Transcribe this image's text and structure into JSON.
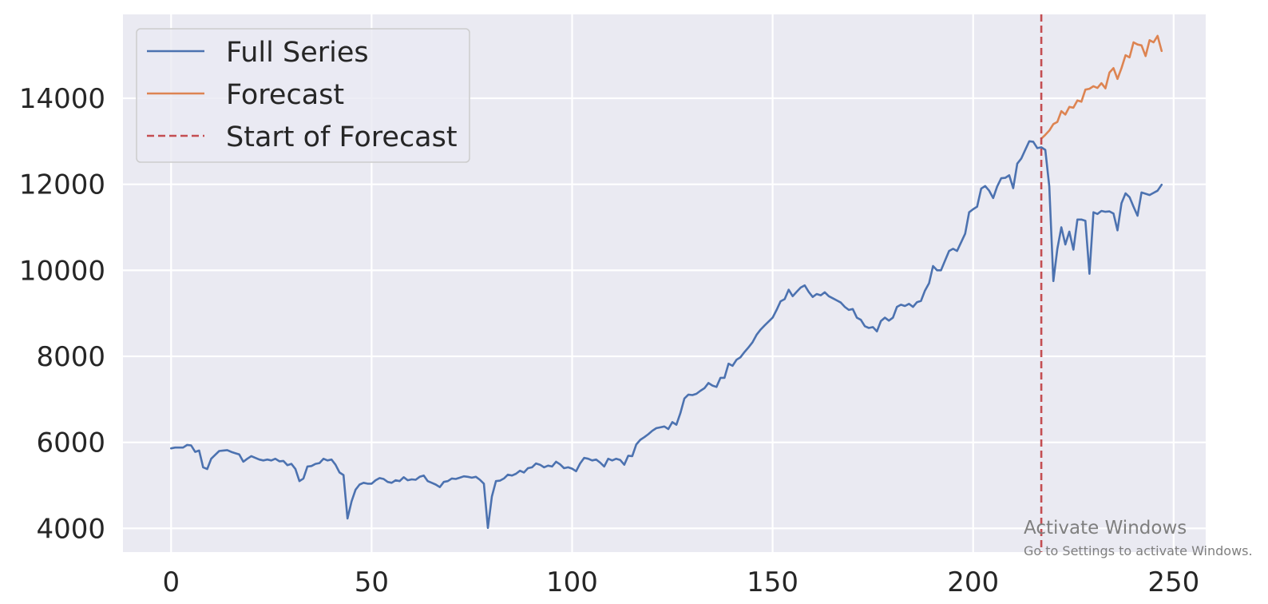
{
  "chart_data": {
    "type": "line",
    "title": "",
    "xlabel": "",
    "ylabel": "",
    "xlim": [
      -12,
      258
    ],
    "ylim": [
      3450,
      15950
    ],
    "grid": true,
    "legend_position": "upper-left",
    "x_ticks": [
      0,
      50,
      100,
      150,
      200,
      250
    ],
    "y_ticks": [
      4000,
      6000,
      8000,
      10000,
      12000,
      14000
    ],
    "x_tick_labels": [
      "0",
      "50",
      "100",
      "150",
      "200",
      "250"
    ],
    "y_tick_labels": [
      "4000",
      "6000",
      "8000",
      "10000",
      "12000",
      "14000"
    ],
    "colors": {
      "background": "#eaeaf2",
      "grid": "#ffffff",
      "full_series": "#4c72b0",
      "forecast": "#dd8452",
      "forecast_start": "#c44e52"
    },
    "forecast_start_x": 217,
    "forecast_start_label": "Start of Forecast",
    "series": [
      {
        "name": "Full Series",
        "color": "#4c72b0",
        "x": [
          0,
          1,
          2,
          3,
          4,
          5,
          6,
          7,
          8,
          9,
          10,
          11,
          12,
          13,
          14,
          15,
          16,
          17,
          18,
          19,
          20,
          21,
          22,
          23,
          24,
          25,
          26,
          27,
          28,
          29,
          30,
          31,
          32,
          33,
          34,
          35,
          36,
          37,
          38,
          39,
          40,
          41,
          42,
          43,
          44,
          45,
          46,
          47,
          48,
          49,
          50,
          51,
          52,
          53,
          54,
          55,
          56,
          57,
          58,
          59,
          60,
          61,
          62,
          63,
          64,
          65,
          66,
          67,
          68,
          69,
          70,
          71,
          72,
          73,
          74,
          75,
          76,
          77,
          78,
          79,
          80,
          81,
          82,
          83,
          84,
          85,
          86,
          87,
          88,
          89,
          90,
          91,
          92,
          93,
          94,
          95,
          96,
          97,
          98,
          99,
          100,
          101,
          102,
          103,
          104,
          105,
          106,
          107,
          108,
          109,
          110,
          111,
          112,
          113,
          114,
          115,
          116,
          117,
          118,
          119,
          120,
          121,
          122,
          123,
          124,
          125,
          126,
          127,
          128,
          129,
          130,
          131,
          132,
          133,
          134,
          135,
          136,
          137,
          138,
          139,
          140,
          141,
          142,
          143,
          144,
          145,
          146,
          147,
          148,
          149,
          150,
          151,
          152,
          153,
          154,
          155,
          156,
          157,
          158,
          159,
          160,
          161,
          162,
          163,
          164,
          165,
          166,
          167,
          168,
          169,
          170,
          171,
          172,
          173,
          174,
          175,
          176,
          177,
          178,
          179,
          180,
          181,
          182,
          183,
          184,
          185,
          186,
          187,
          188,
          189,
          190,
          191,
          192,
          193,
          194,
          195,
          196,
          197,
          198,
          199,
          200,
          201,
          202,
          203,
          204,
          205,
          206,
          207,
          208,
          209,
          210,
          211,
          212,
          213,
          214,
          215,
          216,
          217,
          218,
          219,
          220,
          221,
          222,
          223,
          224,
          225,
          226,
          227,
          228,
          229,
          230,
          231,
          232,
          233,
          234,
          235,
          236,
          237,
          238,
          239,
          240,
          241,
          242,
          243,
          244,
          245,
          246,
          247
        ],
        "y": [
          5860,
          5880,
          5880,
          5880,
          5940,
          5930,
          5780,
          5810,
          5420,
          5380,
          5620,
          5710,
          5800,
          5810,
          5820,
          5780,
          5750,
          5720,
          5550,
          5620,
          5680,
          5640,
          5600,
          5580,
          5600,
          5580,
          5620,
          5560,
          5570,
          5470,
          5500,
          5380,
          5100,
          5160,
          5440,
          5450,
          5500,
          5520,
          5620,
          5580,
          5600,
          5480,
          5300,
          5240,
          4230,
          4630,
          4900,
          5020,
          5060,
          5040,
          5040,
          5120,
          5170,
          5150,
          5080,
          5060,
          5120,
          5100,
          5190,
          5120,
          5140,
          5130,
          5200,
          5230,
          5100,
          5060,
          5020,
          4960,
          5080,
          5100,
          5160,
          5150,
          5180,
          5210,
          5200,
          5180,
          5200,
          5130,
          5040,
          4010,
          4740,
          5100,
          5110,
          5160,
          5250,
          5230,
          5270,
          5340,
          5300,
          5400,
          5420,
          5510,
          5480,
          5420,
          5460,
          5440,
          5550,
          5490,
          5400,
          5420,
          5390,
          5330,
          5510,
          5640,
          5620,
          5580,
          5600,
          5530,
          5440,
          5620,
          5580,
          5620,
          5590,
          5480,
          5690,
          5680,
          5950,
          6060,
          6120,
          6190,
          6270,
          6330,
          6350,
          6370,
          6310,
          6470,
          6410,
          6680,
          7020,
          7110,
          7100,
          7130,
          7200,
          7260,
          7380,
          7320,
          7290,
          7500,
          7500,
          7830,
          7780,
          7920,
          7980,
          8100,
          8210,
          8330,
          8500,
          8620,
          8720,
          8810,
          8900,
          9080,
          9280,
          9330,
          9550,
          9400,
          9500,
          9600,
          9650,
          9500,
          9380,
          9450,
          9420,
          9490,
          9400,
          9350,
          9300,
          9250,
          9150,
          9080,
          9100,
          8900,
          8850,
          8700,
          8660,
          8680,
          8580,
          8820,
          8900,
          8830,
          8900,
          9150,
          9200,
          9170,
          9220,
          9150,
          9260,
          9290,
          9530,
          9700,
          10100,
          10000,
          10000,
          10230,
          10450,
          10500,
          10450,
          10650,
          10850,
          11350,
          11420,
          11480,
          11900,
          11960,
          11850,
          11680,
          11950,
          12140,
          12150,
          12210,
          11910,
          12480,
          12600,
          12800,
          13000,
          12990,
          12840,
          12860,
          12800,
          11950,
          9750,
          10500,
          11000,
          10600,
          10900,
          10480,
          11180,
          11180,
          11150,
          9920,
          11350,
          11310,
          11380,
          11360,
          11370,
          11320,
          10930,
          11560,
          11790,
          11700,
          11480,
          11270,
          11810,
          11780,
          11750,
          11800,
          11850,
          11990
        ]
      },
      {
        "name": "Forecast",
        "color": "#dd8452",
        "x": [
          217,
          218,
          219,
          220,
          221,
          222,
          223,
          224,
          225,
          226,
          227,
          228,
          229,
          230,
          231,
          232,
          233,
          234,
          235,
          236,
          237,
          238,
          239,
          240,
          241,
          242,
          243,
          244,
          245,
          246,
          247
        ],
        "y": [
          13060,
          13150,
          13250,
          13400,
          13450,
          13700,
          13620,
          13800,
          13780,
          13950,
          13920,
          14200,
          14220,
          14280,
          14240,
          14350,
          14230,
          14600,
          14700,
          14450,
          14700,
          15000,
          14950,
          15300,
          15250,
          15230,
          14980,
          15350,
          15300,
          15450,
          15100
        ]
      }
    ]
  }
}
